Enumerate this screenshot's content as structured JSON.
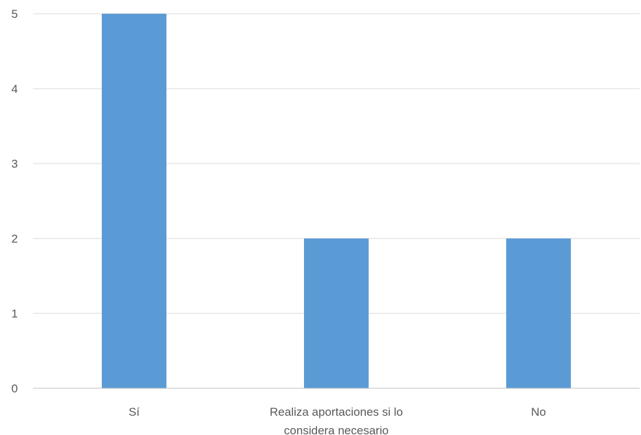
{
  "chart_data": {
    "type": "bar",
    "categories": [
      "Sí",
      "Realiza aportaciones si lo considera necesario",
      "No"
    ],
    "category_label_lines": [
      [
        "Sí"
      ],
      [
        "Realiza aportaciones si lo",
        "considera necesario"
      ],
      [
        "No"
      ]
    ],
    "values": [
      5,
      2,
      2
    ],
    "ylim": [
      0,
      5
    ],
    "yticks": [
      0,
      1,
      2,
      3,
      4,
      5
    ],
    "title": "",
    "xlabel": "",
    "ylabel": "",
    "grid": true,
    "legend": "none",
    "colors": {
      "bar": "#5b9bd5",
      "grid": "#d9d9d9",
      "axis": "#bfbfbf",
      "text": "#595959"
    }
  }
}
